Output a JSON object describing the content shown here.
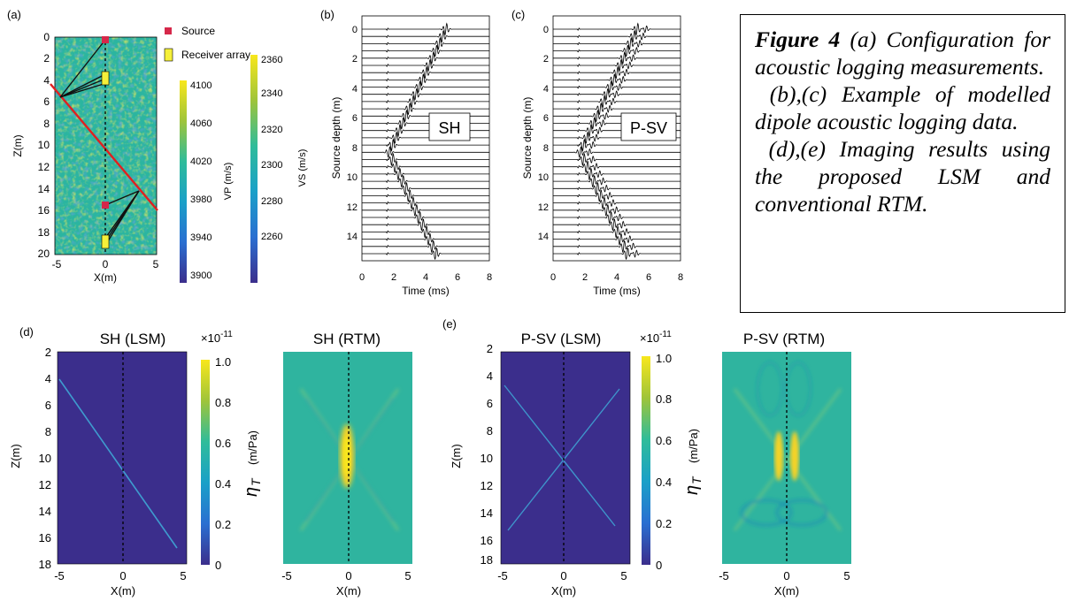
{
  "figure": {
    "caption": {
      "label": "Figure 4",
      "lines": [
        "(a) Configuration for acoustic logging measurements.",
        "(b),(c) Example of modelled dipole acoustic logging data.",
        "(d),(e) Imaging results using the proposed LSM and conventional RTM."
      ]
    },
    "panel_labels": {
      "a": "(a)",
      "b": "(b)",
      "c": "(c)",
      "d": "(d)",
      "e": "(e)"
    },
    "panel_a": {
      "legend_source": "Source",
      "legend_receiver": "Receiver array",
      "xlabel": "X(m)",
      "ylabel": "Z(m)",
      "vp_label": "VP (m/s)",
      "vs_label": "VS (m/s)",
      "source_color": "#d6284a",
      "receiver_color": "#f5f03a",
      "fracture_color": "#e02020"
    },
    "panel_b": {
      "title": "SH",
      "xlabel": "Time (ms)",
      "ylabel": "Source depth (m)"
    },
    "panel_c": {
      "title": "P-SV",
      "xlabel": "Time (ms)",
      "ylabel": "Source depth (m)"
    },
    "panel_d": {
      "title_lsm": "SH (LSM)",
      "title_rtm": "SH (RTM)",
      "xlabel": "X(m)",
      "ylabel": "Z(m)",
      "cbar_exp": "×10",
      "cbar_exp_power": "-11",
      "cbar_units": "(m/Pa)"
    },
    "panel_e": {
      "title_lsm": "P-SV (LSM)",
      "title_rtm": "P-SV (RTM)",
      "xlabel": "X(m)",
      "ylabel": "Z(m)",
      "cbar_exp": "×10",
      "cbar_exp_power": "-11",
      "cbar_units": "(m/Pa)"
    }
  },
  "chart_data": [
    {
      "type": "heatmap",
      "name": "velocity-model",
      "xticks": [
        "-5",
        "0",
        "5"
      ],
      "yticks": [
        "0",
        "2",
        "4",
        "6",
        "8",
        "10",
        "12",
        "14",
        "16",
        "18",
        "20"
      ],
      "xlim": [
        -5,
        5
      ],
      "ylim": [
        20,
        0
      ]
    },
    {
      "type": "heatmap",
      "name": "vp-colorbar",
      "ticks": [
        "4100",
        "4060",
        "4020",
        "3980",
        "3940",
        "3900"
      ]
    },
    {
      "type": "heatmap",
      "name": "vs-colorbar",
      "ticks": [
        "2360",
        "2340",
        "2320",
        "2300",
        "2280",
        "2260"
      ]
    },
    {
      "type": "line",
      "name": "SH-traces",
      "xticks": [
        "0",
        "2",
        "4",
        "6",
        "8"
      ],
      "yticks": [
        "0",
        "2",
        "4",
        "6",
        "8",
        "10",
        "12",
        "14"
      ],
      "xlim": [
        0,
        8
      ],
      "ylim": [
        15.5,
        -0.5
      ]
    },
    {
      "type": "line",
      "name": "PSV-traces",
      "xticks": [
        "0",
        "2",
        "4",
        "6",
        "8"
      ],
      "yticks": [
        "0",
        "2",
        "4",
        "6",
        "8",
        "10",
        "12",
        "14"
      ],
      "xlim": [
        0,
        8
      ],
      "ylim": [
        15.5,
        -0.5
      ]
    },
    {
      "type": "heatmap",
      "name": "SH-LSM-RTM",
      "xticks": [
        "-5",
        "0",
        "5"
      ],
      "yticks": [
        "2",
        "4",
        "6",
        "8",
        "10",
        "12",
        "14",
        "16",
        "18"
      ],
      "cbar_ticks": [
        "1.0",
        "0.8",
        "0.6",
        "0.4",
        "0.2",
        "0"
      ]
    },
    {
      "type": "heatmap",
      "name": "PSV-LSM-RTM",
      "xticks": [
        "-5",
        "0",
        "5"
      ],
      "yticks": [
        "2",
        "4",
        "6",
        "8",
        "10",
        "12",
        "14",
        "16",
        "18"
      ],
      "cbar_ticks": [
        "1.0",
        "0.8",
        "0.6",
        "0.4",
        "0.2",
        "0"
      ]
    }
  ]
}
